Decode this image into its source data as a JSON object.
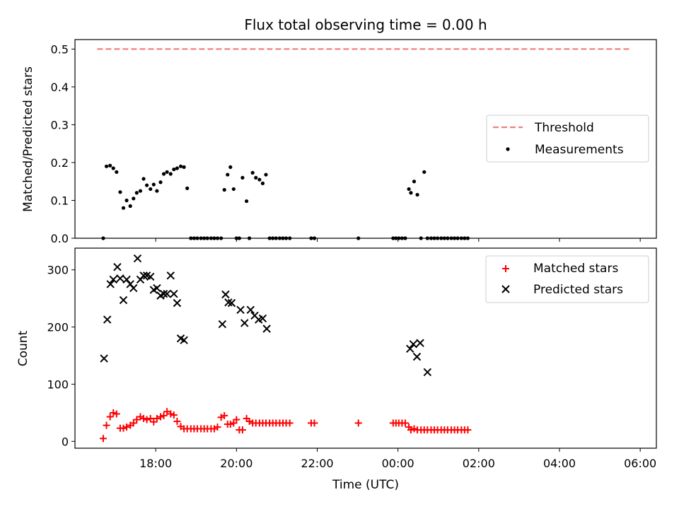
{
  "title": "Flux total observing time = 0.00 h",
  "colors": {
    "threshold": "#f08080",
    "measurement": "#000000",
    "matched": "#ff0000",
    "predicted": "#000000"
  },
  "chart_data": [
    {
      "type": "scatter",
      "ylabel": "Matched/Predicted stars",
      "xlim_hours": [
        16.0,
        30.4
      ],
      "ylim": [
        0,
        0.525
      ],
      "yticks": [
        "0.0",
        "0.1",
        "0.2",
        "0.3",
        "0.4",
        "0.5"
      ],
      "legend_position": "right",
      "threshold": {
        "name": "Threshold",
        "value": 0.5,
        "x_range_hours": [
          16.55,
          29.75
        ]
      },
      "series": [
        {
          "name": "Measurements",
          "x_hours": [
            16.7,
            16.78,
            16.87,
            16.95,
            17.03,
            17.12,
            17.2,
            17.28,
            17.37,
            17.45,
            17.53,
            17.62,
            17.7,
            17.78,
            17.87,
            17.95,
            18.03,
            18.12,
            18.2,
            18.28,
            18.37,
            18.45,
            18.53,
            18.62,
            18.7,
            18.78,
            18.87,
            18.95,
            19.03,
            19.12,
            19.2,
            19.28,
            19.37,
            19.45,
            19.53,
            19.62,
            19.7,
            19.78,
            19.85,
            19.93,
            20.0,
            20.07,
            20.15,
            20.25,
            20.32,
            20.4,
            20.48,
            20.57,
            20.65,
            20.73,
            20.82,
            20.9,
            20.98,
            21.07,
            21.15,
            21.23,
            21.32,
            21.85,
            21.93,
            23.02,
            23.88,
            23.95,
            24.02,
            24.1,
            24.18,
            24.27,
            24.32,
            24.4,
            24.48,
            24.57,
            24.65,
            24.73,
            24.82,
            24.9,
            24.98,
            25.07,
            25.15,
            25.23,
            25.32,
            25.4,
            25.48,
            25.57,
            25.65,
            25.73
          ],
          "y": [
            0.0,
            0.19,
            0.192,
            0.185,
            0.175,
            0.122,
            0.08,
            0.1,
            0.085,
            0.105,
            0.12,
            0.125,
            0.157,
            0.14,
            0.13,
            0.142,
            0.125,
            0.148,
            0.17,
            0.175,
            0.17,
            0.182,
            0.185,
            0.19,
            0.188,
            0.132,
            0.0,
            0.0,
            0.0,
            0.0,
            0.0,
            0.0,
            0.0,
            0.0,
            0.0,
            0.0,
            0.128,
            0.168,
            0.188,
            0.13,
            0.0,
            0.0,
            0.16,
            0.098,
            0.0,
            0.173,
            0.16,
            0.155,
            0.145,
            0.168,
            0.0,
            0.0,
            0.0,
            0.0,
            0.0,
            0.0,
            0.0,
            0.0,
            0.0,
            0.0,
            0.0,
            0.0,
            0.0,
            0.0,
            0.0,
            0.13,
            0.12,
            0.15,
            0.115,
            0.0,
            0.175,
            0.0,
            0.0,
            0.0,
            0.0,
            0.0,
            0.0,
            0.0,
            0.0,
            0.0,
            0.0,
            0.0,
            0.0,
            0.0
          ]
        }
      ]
    },
    {
      "type": "scatter",
      "ylabel": "Count",
      "xlabel": "Time (UTC)",
      "xlim_hours": [
        16.0,
        30.4
      ],
      "ylim": [
        -12,
        338
      ],
      "yticks": [
        "0",
        "100",
        "200",
        "300"
      ],
      "xticks": [
        "18:00",
        "20:00",
        "22:00",
        "00:00",
        "02:00",
        "04:00",
        "06:00"
      ],
      "xticks_hours": [
        18,
        20,
        22,
        24,
        26,
        28,
        30
      ],
      "legend_position": "upper right",
      "series": [
        {
          "name": "Matched stars",
          "marker": "+",
          "x_hours": [
            16.7,
            16.78,
            16.87,
            16.95,
            17.03,
            17.12,
            17.2,
            17.28,
            17.37,
            17.45,
            17.53,
            17.62,
            17.7,
            17.78,
            17.87,
            17.95,
            18.03,
            18.12,
            18.2,
            18.28,
            18.37,
            18.45,
            18.53,
            18.62,
            18.7,
            18.78,
            18.87,
            18.95,
            19.03,
            19.12,
            19.2,
            19.28,
            19.37,
            19.45,
            19.53,
            19.62,
            19.7,
            19.78,
            19.85,
            19.93,
            20.0,
            20.07,
            20.15,
            20.25,
            20.32,
            20.4,
            20.48,
            20.57,
            20.65,
            20.73,
            20.82,
            20.9,
            20.98,
            21.07,
            21.15,
            21.23,
            21.32,
            21.85,
            21.93,
            23.02,
            23.88,
            23.95,
            24.02,
            24.1,
            24.18,
            24.27,
            24.32,
            24.4,
            24.48,
            24.57,
            24.65,
            24.73,
            24.82,
            24.9,
            24.98,
            25.07,
            25.15,
            25.23,
            25.32,
            25.4,
            25.48,
            25.57,
            25.65,
            25.73
          ],
          "y": [
            5,
            28,
            43,
            50,
            48,
            23,
            23,
            25,
            28,
            32,
            38,
            43,
            40,
            38,
            40,
            34,
            40,
            43,
            45,
            52,
            48,
            46,
            35,
            26,
            22,
            22,
            22,
            22,
            22,
            22,
            22,
            22,
            22,
            22,
            25,
            42,
            45,
            30,
            30,
            32,
            38,
            20,
            20,
            40,
            35,
            32,
            32,
            32,
            32,
            32,
            32,
            32,
            32,
            32,
            32,
            32,
            32,
            32,
            32,
            32,
            32,
            32,
            32,
            32,
            32,
            25,
            20,
            22,
            20,
            20,
            20,
            20,
            20,
            20,
            20,
            20,
            20,
            20,
            20,
            20,
            20,
            20,
            20,
            20
          ]
        },
        {
          "name": "Predicted stars",
          "marker": "x",
          "x_hours": [
            16.72,
            16.8,
            16.88,
            16.95,
            17.05,
            17.12,
            17.2,
            17.28,
            17.37,
            17.45,
            17.55,
            17.62,
            17.7,
            17.78,
            17.87,
            17.95,
            18.03,
            18.12,
            18.2,
            18.28,
            18.37,
            18.45,
            18.53,
            18.62,
            18.7,
            19.65,
            19.73,
            19.8,
            19.88,
            20.1,
            20.2,
            20.35,
            20.45,
            20.55,
            20.65,
            20.75,
            24.3,
            24.38,
            24.47,
            24.55,
            24.73
          ],
          "y": [
            145,
            213,
            275,
            283,
            305,
            285,
            247,
            283,
            275,
            268,
            320,
            283,
            290,
            290,
            288,
            265,
            268,
            255,
            258,
            258,
            290,
            258,
            242,
            180,
            177,
            205,
            257,
            243,
            242,
            230,
            207,
            230,
            220,
            213,
            215,
            197,
            162,
            170,
            148,
            172,
            121
          ]
        }
      ]
    }
  ]
}
